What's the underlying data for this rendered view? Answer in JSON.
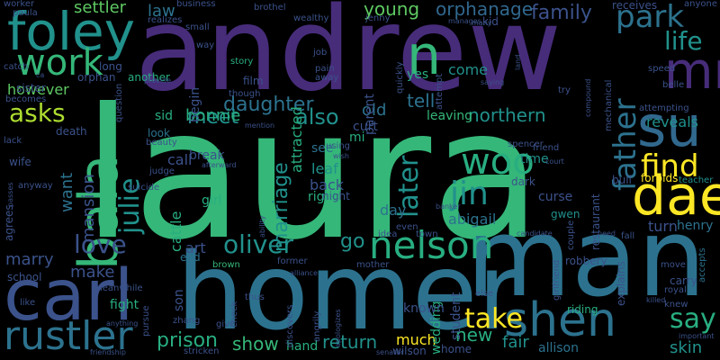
{
  "palette": {
    "c1": "#45247a",
    "c2": "#472c7a",
    "c3": "#3b528b",
    "c4": "#2c728e",
    "c5": "#21918c",
    "c6": "#28ae80",
    "c7": "#35b779",
    "c8": "#5ec962",
    "c9": "#addc30",
    "c10": "#fde725",
    "c11": "#440154",
    "c12": "#31688e"
  },
  "words": [
    {
      "text": "laura"
    },
    {
      "text": "andrew"
    },
    {
      "text": "homer"
    },
    {
      "text": "man"
    },
    {
      "text": "carl"
    },
    {
      "text": "foley"
    },
    {
      "text": "bala"
    },
    {
      "text": "su"
    },
    {
      "text": "dae"
    },
    {
      "text": "mr"
    },
    {
      "text": "n"
    },
    {
      "text": "shen"
    },
    {
      "text": "nelson"
    },
    {
      "text": "rustler"
    },
    {
      "text": "work"
    },
    {
      "text": "woo"
    },
    {
      "text": "jin"
    },
    {
      "text": "find"
    },
    {
      "text": "father"
    },
    {
      "text": "park"
    },
    {
      "text": "oliver"
    },
    {
      "text": "love"
    },
    {
      "text": "asks"
    },
    {
      "text": "julie"
    },
    {
      "text": "later"
    },
    {
      "text": "take"
    },
    {
      "text": "say"
    },
    {
      "text": "life"
    },
    {
      "text": "family"
    },
    {
      "text": "young"
    },
    {
      "text": "daughter"
    },
    {
      "text": "meet"
    },
    {
      "text": "also"
    },
    {
      "text": "marriage"
    },
    {
      "text": "prison"
    },
    {
      "text": "return"
    },
    {
      "text": "show"
    },
    {
      "text": "northern"
    },
    {
      "text": "tell"
    },
    {
      "text": "bonnie"
    },
    {
      "text": "however"
    },
    {
      "text": "orphanage"
    },
    {
      "text": "settler"
    },
    {
      "text": "law"
    },
    {
      "text": "marry"
    },
    {
      "text": "make"
    },
    {
      "text": "want"
    },
    {
      "text": "mansion"
    },
    {
      "text": "cattle"
    },
    {
      "text": "go"
    },
    {
      "text": "art"
    },
    {
      "text": "new"
    },
    {
      "text": "much"
    },
    {
      "text": "skin"
    },
    {
      "text": "fair"
    },
    {
      "text": "reveals"
    },
    {
      "text": "turn"
    },
    {
      "text": "henry"
    },
    {
      "text": "abigail"
    },
    {
      "text": "day"
    },
    {
      "text": "curse"
    },
    {
      "text": "gwen"
    },
    {
      "text": "leaf"
    },
    {
      "text": "back"
    },
    {
      "text": "right"
    },
    {
      "text": "night"
    },
    {
      "text": "girl"
    },
    {
      "text": "call"
    },
    {
      "text": "break"
    },
    {
      "text": "see"
    },
    {
      "text": "old"
    },
    {
      "text": "curt"
    },
    {
      "text": "mi"
    },
    {
      "text": "time"
    },
    {
      "text": "parent"
    },
    {
      "text": "come"
    },
    {
      "text": "yes"
    },
    {
      "text": "leaving"
    },
    {
      "text": "restaurant"
    },
    {
      "text": "forbids"
    },
    {
      "text": "teacher"
    },
    {
      "text": "bull"
    },
    {
      "text": "attracted"
    },
    {
      "text": "begin"
    },
    {
      "text": "sid"
    },
    {
      "text": "look"
    },
    {
      "text": "sister"
    },
    {
      "text": "orphan"
    },
    {
      "text": "long"
    },
    {
      "text": "another"
    },
    {
      "text": "film"
    },
    {
      "text": "story"
    },
    {
      "text": "death"
    },
    {
      "text": "wife"
    },
    {
      "text": "school"
    },
    {
      "text": "agrees"
    },
    {
      "text": "fight"
    },
    {
      "text": "son"
    },
    {
      "text": "end"
    },
    {
      "text": "brown"
    },
    {
      "text": "hand"
    },
    {
      "text": "wedding"
    },
    {
      "text": "known"
    },
    {
      "text": "student"
    },
    {
      "text": "allison"
    },
    {
      "text": "home"
    },
    {
      "text": "wilson"
    },
    {
      "text": "riding"
    },
    {
      "text": "robbery"
    },
    {
      "text": "explains"
    },
    {
      "text": "carry"
    },
    {
      "text": "royal"
    },
    {
      "text": "move"
    },
    {
      "text": "accepts"
    },
    {
      "text": "knew"
    },
    {
      "text": "kid"
    },
    {
      "text": "receives"
    },
    {
      "text": "anyone"
    },
    {
      "text": "speed"
    },
    {
      "text": "belle"
    },
    {
      "text": "attempting"
    },
    {
      "text": "try"
    },
    {
      "text": "mechanical"
    },
    {
      "text": "brothel"
    },
    {
      "text": "wealthy"
    },
    {
      "text": "jenny"
    },
    {
      "text": "worker"
    },
    {
      "text": "paula"
    },
    {
      "text": "business"
    },
    {
      "text": "realizes"
    },
    {
      "text": "small"
    },
    {
      "text": "way"
    },
    {
      "text": "job"
    },
    {
      "text": "pain"
    },
    {
      "text": "away"
    },
    {
      "text": "though"
    },
    {
      "text": "question"
    },
    {
      "text": "catch"
    },
    {
      "text": "becomes"
    },
    {
      "text": "lack"
    },
    {
      "text": "beauty"
    },
    {
      "text": "judge"
    },
    {
      "text": "suicide"
    },
    {
      "text": "afterward"
    },
    {
      "text": "anyway"
    },
    {
      "text": "mention"
    },
    {
      "text": "using"
    },
    {
      "text": "spencer"
    },
    {
      "text": "friend"
    },
    {
      "text": "court"
    },
    {
      "text": "dark"
    },
    {
      "text": "even"
    },
    {
      "text": "idea"
    },
    {
      "text": "town"
    },
    {
      "text": "fall"
    },
    {
      "text": "need"
    },
    {
      "text": "couple"
    },
    {
      "text": "girlfriend"
    },
    {
      "text": "else"
    },
    {
      "text": "thus"
    },
    {
      "text": "check"
    },
    {
      "text": "discovers"
    },
    {
      "text": "angrily"
    },
    {
      "text": "apologizes"
    },
    {
      "text": "zhang"
    },
    {
      "text": "give"
    },
    {
      "text": "stricken"
    },
    {
      "text": "friendship"
    },
    {
      "text": "anything"
    },
    {
      "text": "meanwhile"
    },
    {
      "text": "pursue"
    },
    {
      "text": "former"
    },
    {
      "text": "alliance"
    },
    {
      "text": "mother"
    },
    {
      "text": "like"
    },
    {
      "text": "important"
    },
    {
      "text": "killed"
    },
    {
      "text": "candidate"
    },
    {
      "text": "senator"
    },
    {
      "text": "ability"
    },
    {
      "text": "provide"
    },
    {
      "text": "wish"
    },
    {
      "text": "quickly"
    },
    {
      "text": "manages"
    },
    {
      "text": "attempt"
    },
    {
      "text": "land"
    },
    {
      "text": "compound"
    },
    {
      "text": "many"
    },
    {
      "text": "saying"
    },
    {
      "text": "banker"
    },
    {
      "text": "passes"
    },
    {
      "text": "ca"
    }
  ]
}
